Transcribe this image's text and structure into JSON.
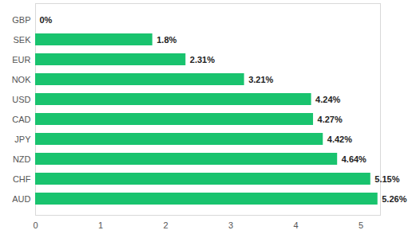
{
  "chart_data": {
    "type": "bar",
    "orientation": "horizontal",
    "categories": [
      "GBP",
      "SEK",
      "EUR",
      "NOK",
      "USD",
      "CAD",
      "JPY",
      "NZD",
      "CHF",
      "AUD"
    ],
    "values": [
      0,
      1.8,
      2.31,
      3.21,
      4.24,
      4.27,
      4.42,
      4.64,
      5.15,
      5.26
    ],
    "value_labels": [
      "0%",
      "1.8%",
      "2.31%",
      "3.21%",
      "4.24%",
      "4.27%",
      "4.42%",
      "4.64%",
      "5.15%",
      "5.26%"
    ],
    "data_labels": true,
    "color": "#19c36e",
    "xlim": [
      0,
      5.3
    ],
    "xticks": [
      0,
      1,
      2,
      3,
      4,
      5
    ],
    "grid": false
  }
}
